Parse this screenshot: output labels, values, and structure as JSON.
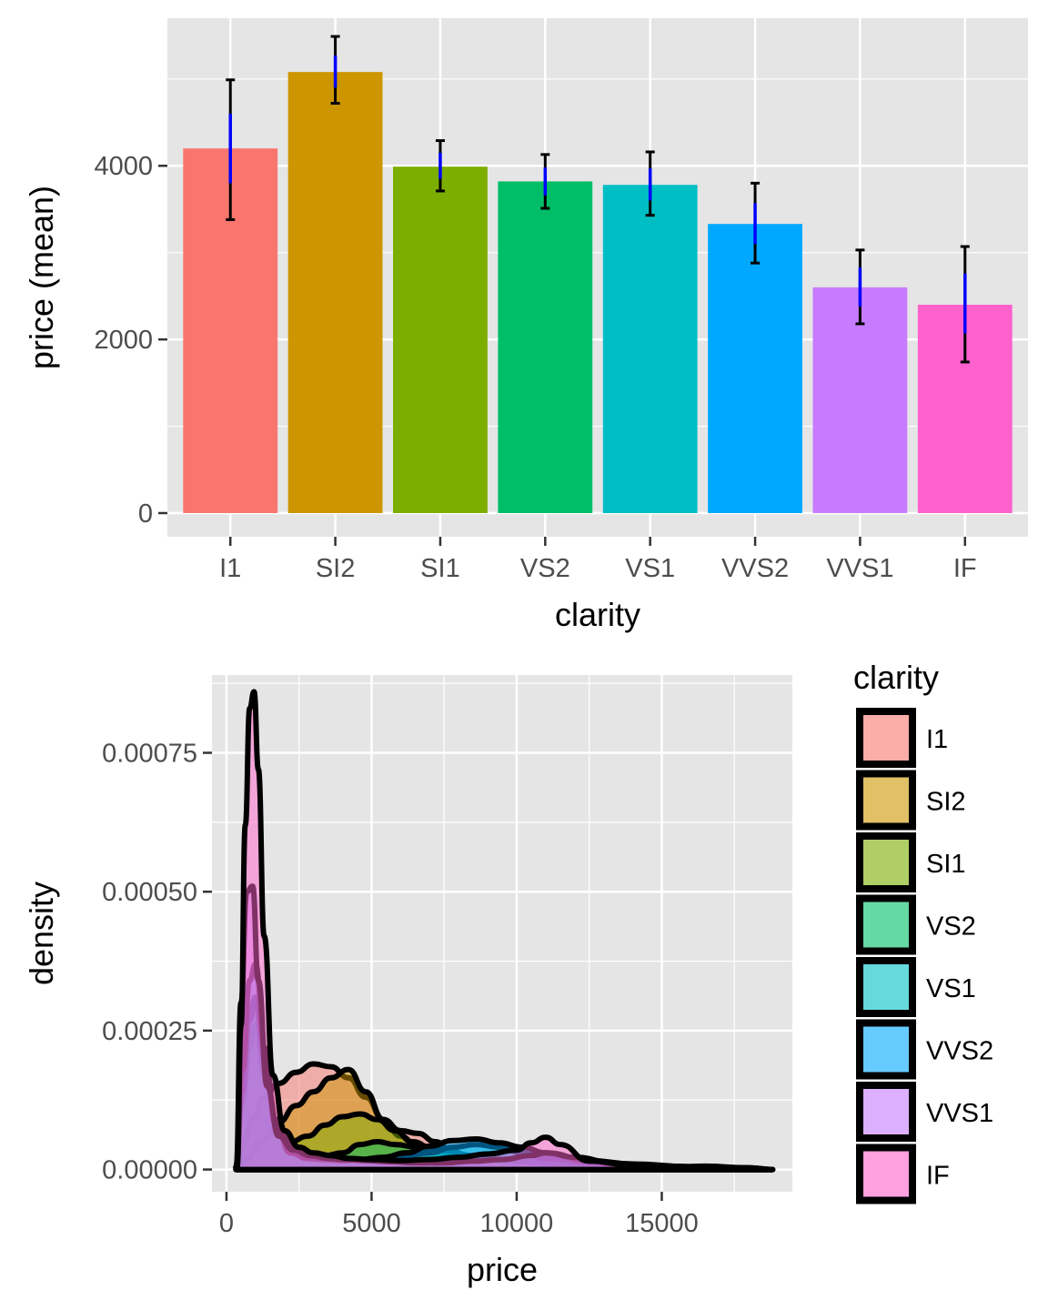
{
  "colors": {
    "panel_bg": "#e5e5e5",
    "grid": "#ffffff",
    "error_bar_outer": "#000000",
    "error_bar_inner": "#0000ff",
    "density_outline": "#000000"
  },
  "chart_data": [
    {
      "type": "bar",
      "title": "",
      "xlabel": "clarity",
      "ylabel": "price (mean)",
      "ylim": [
        0,
        5700
      ],
      "yticks": [
        0,
        2000,
        4000
      ],
      "ytick_labels": [
        "0",
        "2000",
        "4000"
      ],
      "categories": [
        "I1",
        "SI2",
        "SI1",
        "VS2",
        "VS1",
        "VVS2",
        "VVS1",
        "IF"
      ],
      "values": [
        4200,
        5080,
        3990,
        3820,
        3780,
        3330,
        2600,
        2400
      ],
      "error_outer": [
        [
          3380,
          4990
        ],
        [
          4720,
          5490
        ],
        [
          3710,
          4290
        ],
        [
          3510,
          4130
        ],
        [
          3430,
          4160
        ],
        [
          2880,
          3800
        ],
        [
          2180,
          3030
        ],
        [
          1740,
          3070
        ]
      ],
      "error_inner": [
        [
          3800,
          4600
        ],
        [
          4900,
          5270
        ],
        [
          3850,
          4150
        ],
        [
          3660,
          3980
        ],
        [
          3600,
          3970
        ],
        [
          3100,
          3570
        ],
        [
          2380,
          2830
        ],
        [
          2070,
          2760
        ]
      ],
      "fill_colors": [
        "#f8766d",
        "#cd9600",
        "#7cae00",
        "#00be67",
        "#00bfc4",
        "#00a9ff",
        "#c77cff",
        "#ff61cc"
      ],
      "grid": true
    },
    {
      "type": "area",
      "title": "",
      "xlabel": "price",
      "ylabel": "density",
      "xlim": [
        -500,
        19500
      ],
      "ylim": [
        -4e-05,
        0.00089
      ],
      "xticks": [
        0,
        5000,
        10000,
        15000
      ],
      "xtick_labels": [
        "0",
        "5000",
        "10000",
        "15000"
      ],
      "yticks": [
        0,
        0.00025,
        0.0005,
        0.00075
      ],
      "ytick_labels": [
        "0.00000",
        "0.00025",
        "0.00050",
        "0.00075"
      ],
      "grid": true,
      "legend_title": "clarity",
      "legend_position": "right",
      "series": [
        {
          "name": "I1",
          "color": "#f8766d",
          "x": [
            345,
            600,
            900,
            1300,
            1800,
            2400,
            3000,
            3600,
            4200,
            4800,
            5400,
            6000,
            6600,
            7200,
            7800,
            8400,
            9000,
            9800,
            10800,
            12000,
            13500,
            15000,
            16500,
            18000,
            18823
          ],
          "y": [
            1e-05,
            5e-05,
            9e-05,
            0.00013,
            0.000155,
            0.000175,
            0.00019,
            0.000185,
            0.000165,
            0.00013,
            9e-05,
            7e-05,
            6.5e-05,
            5e-05,
            3e-05,
            2e-05,
            1.5e-05,
            1e-05,
            8e-06,
            6e-06,
            4e-06,
            3e-06,
            2e-06,
            1e-06,
            0
          ]
        },
        {
          "name": "SI2",
          "color": "#cd9600",
          "x": [
            326,
            700,
            1200,
            1800,
            2400,
            3000,
            3600,
            4200,
            4800,
            5400,
            6000,
            6600,
            7200,
            8000,
            9000,
            10000,
            11000,
            12000,
            13500,
            15000,
            16500,
            18000,
            18804
          ],
          "y": [
            5e-06,
            2e-05,
            5e-05,
            8.5e-05,
            0.000115,
            0.00014,
            0.000165,
            0.00018,
            0.00014,
            9e-05,
            6e-05,
            4e-05,
            3e-05,
            2.2e-05,
            1.8e-05,
            1.4e-05,
            1e-05,
            7e-06,
            5e-06,
            4e-06,
            6e-06,
            3e-06,
            0
          ]
        },
        {
          "name": "SI1",
          "color": "#7cae00",
          "x": [
            326,
            550,
            800,
            1000,
            1300,
            1700,
            2200,
            2800,
            3400,
            4000,
            4600,
            5200,
            5800,
            6400,
            7200,
            8000,
            9000,
            10000,
            11000,
            12500,
            14000,
            16000,
            18000,
            18818
          ],
          "y": [
            5e-06,
            0.00012,
            0.00022,
            0.00026,
            0.00017,
            8e-05,
            5e-05,
            6e-05,
            8e-05,
            9.5e-05,
            0.0001,
            9e-05,
            7e-05,
            5e-05,
            3.5e-05,
            2.5e-05,
            2e-05,
            1.5e-05,
            1e-05,
            8e-06,
            6e-06,
            4e-06,
            2e-06,
            0
          ]
        },
        {
          "name": "VS2",
          "color": "#00be67",
          "x": [
            334,
            550,
            800,
            1000,
            1300,
            1700,
            2200,
            2800,
            3400,
            4000,
            4600,
            5200,
            5800,
            6600,
            7500,
            8500,
            9500,
            10500,
            11500,
            13000,
            15000,
            17000,
            18823
          ],
          "y": [
            5e-06,
            0.00014,
            0.00028,
            0.00031,
            0.00019,
            8e-05,
            4e-05,
            3e-05,
            2.5e-05,
            3e-05,
            4.5e-05,
            5e-05,
            4.5e-05,
            4e-05,
            3.5e-05,
            2.5e-05,
            1.8e-05,
            1.4e-05,
            1e-05,
            7e-06,
            5e-06,
            3e-06,
            0
          ]
        },
        {
          "name": "VS1",
          "color": "#00bfc4",
          "x": [
            327,
            550,
            800,
            1000,
            1300,
            1700,
            2200,
            2800,
            3400,
            4000,
            4600,
            5400,
            6200,
            7000,
            7800,
            8600,
            9400,
            10200,
            11000,
            12500,
            14000,
            16000,
            18000,
            18795
          ],
          "y": [
            5e-06,
            0.00014,
            0.00027,
            0.0003,
            0.0002,
            9e-05,
            4e-05,
            3e-05,
            2.5e-05,
            2e-05,
            1.8e-05,
            2e-05,
            2.5e-05,
            3e-05,
            4e-05,
            4.5e-05,
            4e-05,
            3e-05,
            2e-05,
            1.2e-05,
            8e-06,
            5e-06,
            2e-06,
            0
          ]
        },
        {
          "name": "VVS2",
          "color": "#00a9ff",
          "x": [
            336,
            550,
            800,
            1000,
            1300,
            1700,
            2200,
            2800,
            3400,
            4000,
            4600,
            5400,
            6200,
            7000,
            7800,
            8600,
            9400,
            10200,
            11000,
            12500,
            14000,
            16000,
            18000,
            18768
          ],
          "y": [
            5e-06,
            0.00018,
            0.00034,
            0.00037,
            0.00022,
            8e-05,
            3e-05,
            2e-05,
            1.8e-05,
            1.6e-05,
            1.8e-05,
            2.2e-05,
            3e-05,
            4.2e-05,
            5.2e-05,
            5.5e-05,
            4.8e-05,
            4e-05,
            3e-05,
            1.6e-05,
            1e-05,
            5e-06,
            2e-06,
            0
          ]
        },
        {
          "name": "VVS1",
          "color": "#c77cff",
          "x": [
            336,
            500,
            700,
            900,
            1100,
            1400,
            1800,
            2300,
            2900,
            3500,
            4100,
            4800,
            5600,
            6500,
            7500,
            8500,
            9500,
            10500,
            11000,
            12000,
            13500,
            15000,
            16500,
            18000,
            18777
          ],
          "y": [
            5e-06,
            0.0003,
            0.0005,
            0.00051,
            0.00034,
            0.00015,
            6e-05,
            3.5e-05,
            2.5e-05,
            2e-05,
            1.8e-05,
            1.6e-05,
            1.4e-05,
            1.2e-05,
            1.2e-05,
            1.5e-05,
            1.8e-05,
            2.5e-05,
            3e-05,
            2.2e-05,
            1e-05,
            6e-06,
            4e-06,
            3e-06,
            0
          ]
        },
        {
          "name": "IF",
          "color": "#ff61cc",
          "x": [
            369,
            500,
            650,
            800,
            950,
            1100,
            1300,
            1600,
            2000,
            2500,
            3000,
            3600,
            4200,
            5000,
            6000,
            7000,
            8000,
            9000,
            10000,
            10500,
            11000,
            11500,
            12500,
            14000,
            16000,
            18000,
            18806
          ],
          "y": [
            5e-06,
            0.00026,
            0.00062,
            0.00083,
            0.00086,
            0.00072,
            0.00042,
            0.00017,
            7e-05,
            4e-05,
            3e-05,
            2.5e-05,
            2e-05,
            1.8e-05,
            1.6e-05,
            1.8e-05,
            2.2e-05,
            2.8e-05,
            3.5e-05,
            4.8e-05,
            5.8e-05,
            4.5e-05,
            1.5e-05,
            8e-06,
            5e-06,
            3e-06,
            0
          ]
        }
      ]
    }
  ]
}
